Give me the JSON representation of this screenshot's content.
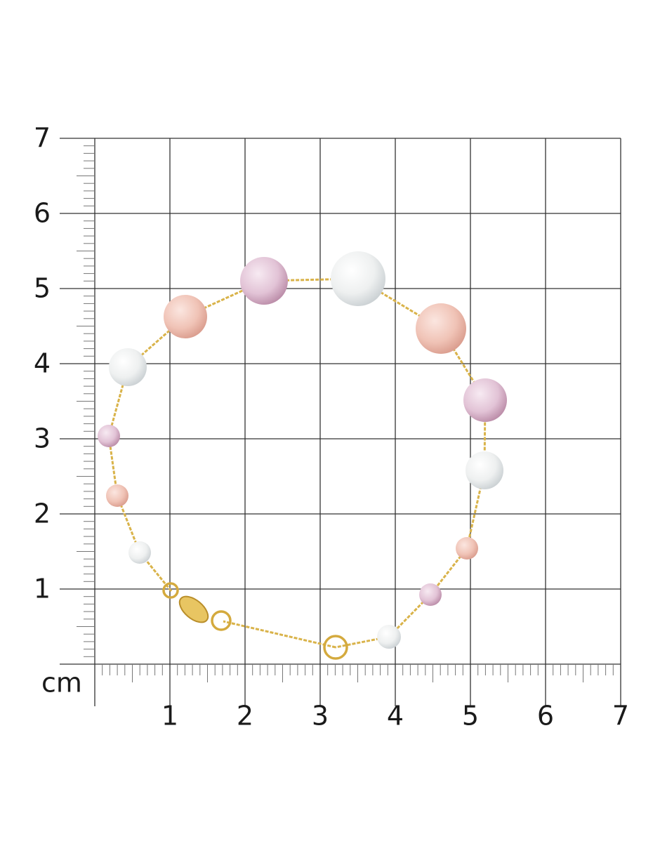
{
  "scale": {
    "unit": "cm",
    "x_ticks": [
      1,
      2,
      3,
      4,
      5,
      6,
      7
    ],
    "y_ticks": [
      1,
      2,
      3,
      4,
      5,
      6,
      7
    ]
  }
}
